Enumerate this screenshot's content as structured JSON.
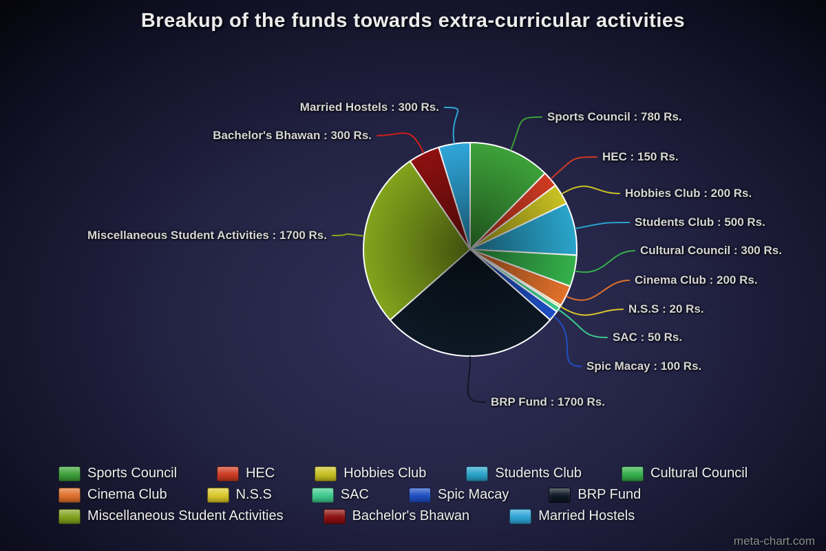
{
  "page": {
    "title": "Breakup of the funds towards extra-curricular activities",
    "watermark": "meta-chart.com"
  },
  "chart_data": {
    "type": "pie",
    "title": "Breakup of the funds towards extra-curricular activities",
    "unit": "Rs.",
    "legend_position": "bottom",
    "slices": [
      {
        "name": "Sports Council",
        "value": 780,
        "label": "Sports Council : 780 Rs.",
        "color": "#3da139"
      },
      {
        "name": "HEC",
        "value": 150,
        "label": "HEC : 150 Rs.",
        "color": "#cf3b22"
      },
      {
        "name": "Hobbies Club",
        "value": 200,
        "label": "Hobbies Club : 200 Rs.",
        "color": "#c9c122"
      },
      {
        "name": "Students Club",
        "value": 500,
        "label": "Students Club : 500 Rs.",
        "color": "#2aa4cb"
      },
      {
        "name": "Cultural Council",
        "value": 300,
        "label": "Cultural Council : 300 Rs.",
        "color": "#35b14b"
      },
      {
        "name": "Cinema Club",
        "value": 200,
        "label": "Cinema Club : 200 Rs.",
        "color": "#e2712b"
      },
      {
        "name": "N.S.S",
        "value": 20,
        "label": "N.S.S : 20 Rs.",
        "color": "#ddc929"
      },
      {
        "name": "SAC",
        "value": 50,
        "label": "SAC : 50 Rs.",
        "color": "#3ecb8e"
      },
      {
        "name": "Spic Macay",
        "value": 100,
        "label": "Spic Macay : 100 Rs.",
        "color": "#1f4fc4"
      },
      {
        "name": "BRP Fund",
        "value": 1700,
        "label": "BRP Fund : 1700 Rs.",
        "color": "#0c1824"
      },
      {
        "name": "Miscellaneous Student Activities",
        "value": 1700,
        "label": "Miscellaneous Student Activities : 1700 Rs.",
        "color": "#82a31c"
      },
      {
        "name": "Bachelor's Bhawan",
        "value": 300,
        "label": "Bachelor's Bhawan : 300 Rs.",
        "color": "#8e1010",
        "line_color": "#cc2016"
      },
      {
        "name": "Married Hostels",
        "value": 300,
        "label": "Married Hostels : 300 Rs.",
        "color": "#2fa6d9"
      }
    ]
  }
}
